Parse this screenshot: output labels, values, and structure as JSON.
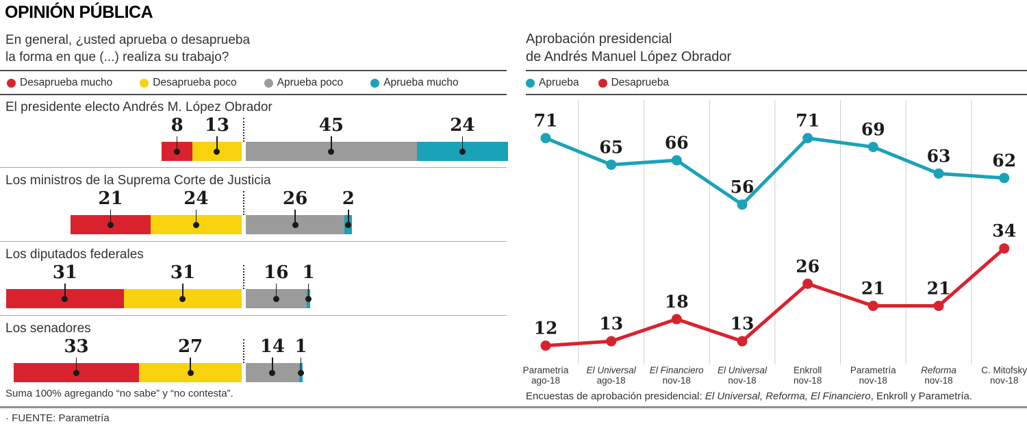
{
  "title": "OPINIÓN PÚBLICA",
  "left_panel": {
    "question": [
      "En general, ¿usted aprueba o desaprueba",
      "la forma en que (...) realiza su trabajo?"
    ]
  },
  "right_panel": {
    "title": [
      "Aprobación presidencial",
      "de Andrés Manuel López Obrador"
    ]
  },
  "source_line": "· FUENTE: Parametría",
  "colors": {
    "disapprove_much": "#d8232f",
    "disapprove_little": "#f8d20e",
    "approve_little": "#9b9b9b",
    "approve_much": "#1aa2b8",
    "marker_black": "#1a1a1a",
    "gridline": "#cccccc"
  },
  "chart_data": [
    {
      "type": "bar",
      "orientation": "horizontal",
      "stacked": true,
      "title": "En general, ¿usted aprueba o desaprueba la forma en que (...) realiza su trabajo?",
      "legend_items": [
        {
          "label": "Desaprueba mucho",
          "color": "#d8232f"
        },
        {
          "label": "Desaprueba poco",
          "color": "#f8d20e"
        },
        {
          "label": "Aprueba poco",
          "color": "#9b9b9b"
        },
        {
          "label": "Aprueba mucho",
          "color": "#1aa2b8"
        }
      ],
      "categories": [
        "El presidente electo Andrés M. López Obrador",
        "Los ministros de la Suprema Corte de Justicia",
        "Los diputados federales",
        "Los senadores"
      ],
      "series": [
        {
          "name": "Desaprueba mucho",
          "values": [
            8,
            21,
            31,
            33
          ]
        },
        {
          "name": "Desaprueba poco",
          "values": [
            13,
            24,
            31,
            27
          ]
        },
        {
          "name": "Aprueba poco",
          "values": [
            45,
            26,
            16,
            14
          ]
        },
        {
          "name": "Aprueba mucho",
          "values": [
            24,
            2,
            1,
            1
          ]
        }
      ],
      "xlim": [
        0,
        100
      ],
      "footnote": "Suma 100% agregando “no sabe” y “no contesta”."
    },
    {
      "type": "line",
      "title": "Aprobación presidencial de Andrés Manuel López Obrador",
      "legend_items": [
        {
          "label": "Aprueba",
          "color": "#1aa2b8"
        },
        {
          "label": "Desaprueba",
          "color": "#d8232f"
        }
      ],
      "categories": [
        {
          "source": "Parametría",
          "date": "ago-18",
          "italic": false
        },
        {
          "source": "El Universal",
          "date": "ago-18",
          "italic": true
        },
        {
          "source": "El Financiero",
          "date": "nov-18",
          "italic": true
        },
        {
          "source": "El Universal",
          "date": "nov-18",
          "italic": true
        },
        {
          "source": "Enkroll",
          "date": "nov-18",
          "italic": false
        },
        {
          "source": "Parametría",
          "date": "nov-18",
          "italic": false
        },
        {
          "source": "Reforma",
          "date": "nov-18",
          "italic": true
        },
        {
          "source": "C. Mitofsky",
          "date": "nov-18",
          "italic": false
        }
      ],
      "series": [
        {
          "name": "Aprueba",
          "values": [
            71,
            65,
            66,
            56,
            71,
            69,
            63,
            62
          ]
        },
        {
          "name": "Desaprueba",
          "values": [
            12,
            13,
            18,
            13,
            26,
            21,
            21,
            34
          ]
        }
      ],
      "ylim": [
        0,
        100
      ],
      "grid": "vertical",
      "legend_position": "top",
      "caption_parts": [
        {
          "text": "Encuestas de aprobación presidencial: ",
          "italic": false
        },
        {
          "text": "El Universal, Reforma, El Financiero",
          "italic": true
        },
        {
          "text": ", Enkroll y Parametría.",
          "italic": false
        }
      ]
    }
  ]
}
